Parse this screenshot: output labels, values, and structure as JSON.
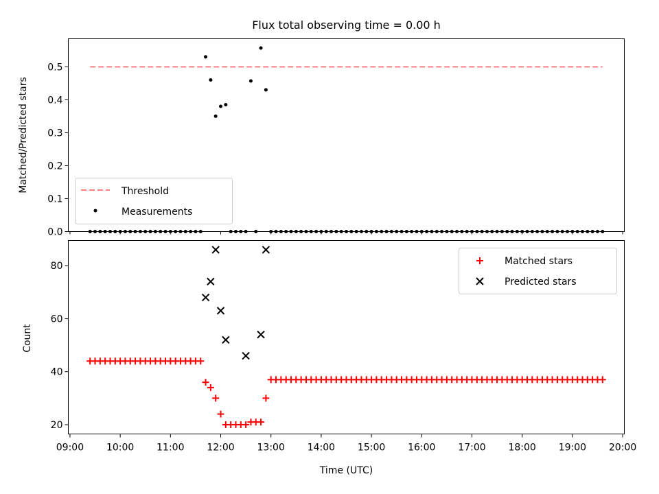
{
  "chart_data": [
    {
      "type": "scatter",
      "title": "Flux total observing time = 0.00 h",
      "xlabel": "",
      "ylabel": "Matched/Predicted stars",
      "ylim": [
        0.0,
        0.585
      ],
      "yticks": [
        "0.0",
        "0.1",
        "0.2",
        "0.3",
        "0.4",
        "0.5"
      ],
      "legend_position": "lower-left",
      "threshold": {
        "name": "Threshold",
        "value": 0.5,
        "color": "#ff7f7f",
        "style": "dashed",
        "x_range": [
          "09:24",
          "19:36"
        ]
      },
      "series": [
        {
          "name": "Measurements",
          "color": "#000000",
          "x": [
            "09:24",
            "09:30",
            "09:36",
            "09:42",
            "09:48",
            "09:54",
            "10:00",
            "10:06",
            "10:12",
            "10:18",
            "10:24",
            "10:30",
            "10:36",
            "10:42",
            "10:48",
            "10:54",
            "11:00",
            "11:06",
            "11:12",
            "11:18",
            "11:24",
            "11:30",
            "11:36",
            "11:42",
            "11:48",
            "11:54",
            "12:00",
            "12:06",
            "12:12",
            "12:18",
            "12:24",
            "12:30",
            "12:36",
            "12:42",
            "12:48",
            "12:54",
            "13:00",
            "13:06",
            "13:12",
            "13:18",
            "13:24",
            "13:30",
            "13:36",
            "13:42",
            "13:48",
            "13:54",
            "14:00",
            "14:06",
            "14:12",
            "14:18",
            "14:24",
            "14:30",
            "14:36",
            "14:42",
            "14:48",
            "14:54",
            "15:00",
            "15:06",
            "15:12",
            "15:18",
            "15:24",
            "15:30",
            "15:36",
            "15:42",
            "15:48",
            "15:54",
            "16:00",
            "16:06",
            "16:12",
            "16:18",
            "16:24",
            "16:30",
            "16:36",
            "16:42",
            "16:48",
            "16:54",
            "17:00",
            "17:06",
            "17:12",
            "17:18",
            "17:24",
            "17:30",
            "17:36",
            "17:42",
            "17:48",
            "17:54",
            "18:00",
            "18:06",
            "18:12",
            "18:18",
            "18:24",
            "18:30",
            "18:36",
            "18:42",
            "18:48",
            "18:54",
            "19:00",
            "19:06",
            "19:12",
            "19:18",
            "19:24",
            "19:30",
            "19:36"
          ],
          "y": [
            0,
            0,
            0,
            0,
            0,
            0,
            0,
            0,
            0,
            0,
            0,
            0,
            0,
            0,
            0,
            0,
            0,
            0,
            0,
            0,
            0,
            0,
            0,
            0.53,
            0.46,
            0.35,
            0.38,
            0.385,
            0,
            0,
            0,
            0,
            0.457,
            0,
            0.557,
            0.43,
            0,
            0,
            0,
            0,
            0,
            0,
            0,
            0,
            0,
            0,
            0,
            0,
            0,
            0,
            0,
            0,
            0,
            0,
            0,
            0,
            0,
            0,
            0,
            0,
            0,
            0,
            0,
            0,
            0,
            0,
            0,
            0,
            0,
            0,
            0,
            0,
            0,
            0,
            0,
            0,
            0,
            0,
            0,
            0,
            0,
            0,
            0,
            0,
            0,
            0,
            0,
            0,
            0,
            0,
            0,
            0,
            0,
            0,
            0,
            0,
            0,
            0,
            0,
            0,
            0,
            0,
            0
          ]
        }
      ]
    },
    {
      "type": "scatter",
      "title": "",
      "xlabel": "Time (UTC)",
      "ylabel": "Count",
      "ylim": [
        16.5,
        89.5
      ],
      "yticks": [
        "20",
        "40",
        "60",
        "80"
      ],
      "xlim": [
        "08:58",
        "20:02"
      ],
      "xticks": [
        "09:00",
        "10:00",
        "11:00",
        "12:00",
        "13:00",
        "14:00",
        "15:00",
        "16:00",
        "17:00",
        "18:00",
        "19:00",
        "20:00"
      ],
      "legend_position": "top-right",
      "series": [
        {
          "name": "Matched stars",
          "marker": "plus",
          "color": "#ff0000",
          "x": [
            "09:24",
            "09:30",
            "09:36",
            "09:42",
            "09:48",
            "09:54",
            "10:00",
            "10:06",
            "10:12",
            "10:18",
            "10:24",
            "10:30",
            "10:36",
            "10:42",
            "10:48",
            "10:54",
            "11:00",
            "11:06",
            "11:12",
            "11:18",
            "11:24",
            "11:30",
            "11:36",
            "11:42",
            "11:48",
            "11:54",
            "12:00",
            "12:06",
            "12:12",
            "12:18",
            "12:24",
            "12:30",
            "12:36",
            "12:42",
            "12:48",
            "12:54",
            "13:00",
            "13:06",
            "13:12",
            "13:18",
            "13:24",
            "13:30",
            "13:36",
            "13:42",
            "13:48",
            "13:54",
            "14:00",
            "14:06",
            "14:12",
            "14:18",
            "14:24",
            "14:30",
            "14:36",
            "14:42",
            "14:48",
            "14:54",
            "15:00",
            "15:06",
            "15:12",
            "15:18",
            "15:24",
            "15:30",
            "15:36",
            "15:42",
            "15:48",
            "15:54",
            "16:00",
            "16:06",
            "16:12",
            "16:18",
            "16:24",
            "16:30",
            "16:36",
            "16:42",
            "16:48",
            "16:54",
            "17:00",
            "17:06",
            "17:12",
            "17:18",
            "17:24",
            "17:30",
            "17:36",
            "17:42",
            "17:48",
            "17:54",
            "18:00",
            "18:06",
            "18:12",
            "18:18",
            "18:24",
            "18:30",
            "18:36",
            "18:42",
            "18:48",
            "18:54",
            "19:00",
            "19:06",
            "19:12",
            "19:18",
            "19:24",
            "19:30",
            "19:36"
          ],
          "y": [
            44,
            44,
            44,
            44,
            44,
            44,
            44,
            44,
            44,
            44,
            44,
            44,
            44,
            44,
            44,
            44,
            44,
            44,
            44,
            44,
            44,
            44,
            44,
            36,
            34,
            30,
            24,
            20,
            20,
            20,
            20,
            20,
            21,
            21,
            21,
            30,
            37,
            37,
            37,
            37,
            37,
            37,
            37,
            37,
            37,
            37,
            37,
            37,
            37,
            37,
            37,
            37,
            37,
            37,
            37,
            37,
            37,
            37,
            37,
            37,
            37,
            37,
            37,
            37,
            37,
            37,
            37,
            37,
            37,
            37,
            37,
            37,
            37,
            37,
            37,
            37,
            37,
            37,
            37,
            37,
            37,
            37,
            37,
            37,
            37,
            37,
            37,
            37,
            37,
            37,
            37,
            37,
            37,
            37,
            37,
            37,
            37,
            37,
            37,
            37,
            37,
            37,
            37
          ]
        },
        {
          "name": "Predicted stars",
          "marker": "x",
          "color": "#000000",
          "x": [
            "11:42",
            "11:48",
            "11:54",
            "12:00",
            "12:06",
            "12:30",
            "12:48",
            "12:54"
          ],
          "y": [
            68,
            74,
            86,
            63,
            52,
            46,
            54,
            86
          ]
        }
      ]
    }
  ]
}
